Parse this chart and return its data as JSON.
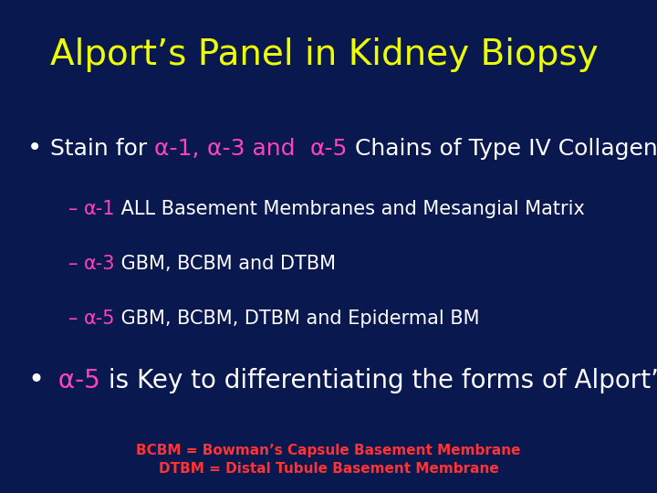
{
  "title": "Alport’s Panel in Kidney Biopsy",
  "title_color": "#EEFF00",
  "background_color": "#0a1850",
  "alpha_color": "#FF44BB",
  "white_color": "#FFFFFF",
  "yellow_color": "#EEFF00",
  "footnote_color": "#FF3333",
  "dash_color": "#FF44BB",
  "footnote1": "BCBM = Bowman’s Capsule Basement Membrane",
  "footnote2": "DTBM = Distal Tubule Basement Membrane",
  "sub1_rest": " ALL Basement Membranes and Mesangial Matrix",
  "sub2_rest": " GBM, BCBM and DTBM",
  "sub3_rest": " GBM, BCBM, DTBM and Epidermal BM",
  "bullet2_rest": " is Key to differentiating the forms of Alport’s"
}
